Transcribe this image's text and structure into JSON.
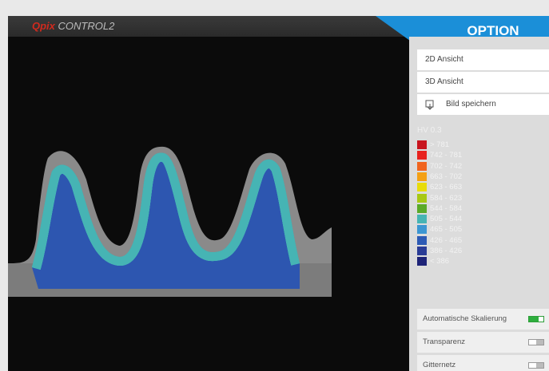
{
  "header": {
    "logo_brand": "Qpix",
    "logo_product": "CONTROL2",
    "tab": "OPTION"
  },
  "buttons": [
    "2D Ansicht",
    "3D Ansicht",
    "Bild speichern"
  ],
  "legend": {
    "title": "HV 0.3",
    "entries": [
      {
        "label": "> 781",
        "color": "#c8141e"
      },
      {
        "label": "742 - 781",
        "color": "#e8221e"
      },
      {
        "label": "702 - 742",
        "color": "#f0641e"
      },
      {
        "label": "663 - 702",
        "color": "#f4a014"
      },
      {
        "label": "623 - 663",
        "color": "#e8dc0a"
      },
      {
        "label": "584 - 623",
        "color": "#a8c814"
      },
      {
        "label": "544 - 584",
        "color": "#5aaa28"
      },
      {
        "label": "505 - 544",
        "color": "#46b4b4"
      },
      {
        "label": "465 - 505",
        "color": "#3c96d2"
      },
      {
        "label": "426 - 465",
        "color": "#2d5ab4"
      },
      {
        "label": "386 - 426",
        "color": "#2a3c96"
      },
      {
        "label": "< 386",
        "color": "#1e2478"
      }
    ]
  },
  "toggles": [
    {
      "label": "Automatische Skalierung",
      "on": true
    },
    {
      "label": "Transparenz",
      "on": false
    },
    {
      "label": "Gitternetz",
      "on": false
    }
  ]
}
